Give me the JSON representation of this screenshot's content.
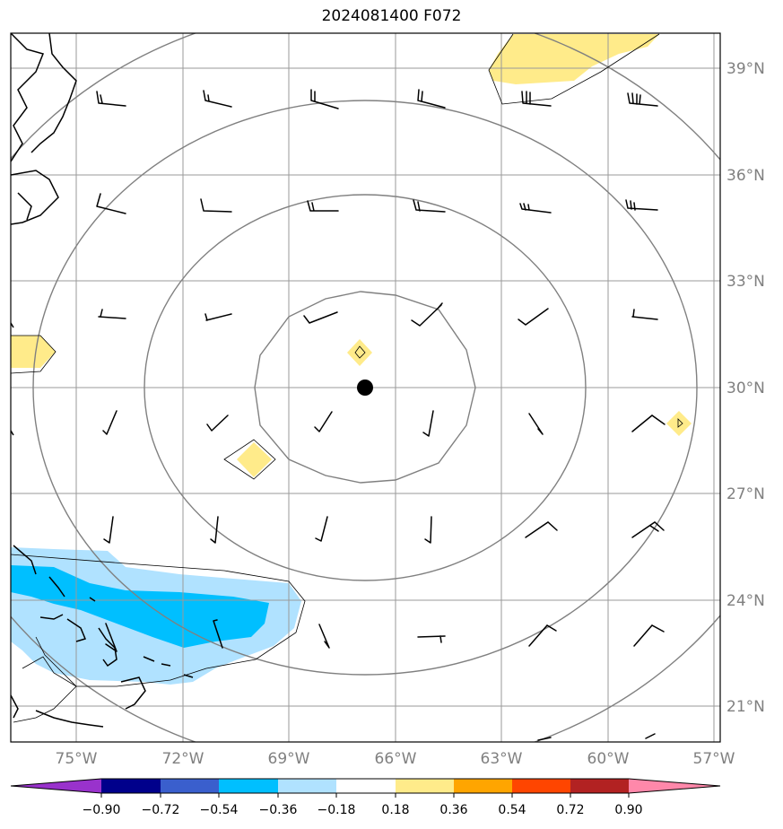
{
  "title": "2024081400 F072",
  "map": {
    "lon_range": [
      -76.875,
      -56.875
    ],
    "lat_range": [
      20.0,
      40.0
    ],
    "lon_ticks": [
      -75,
      -72,
      -69,
      -66,
      -63,
      -60,
      -57
    ],
    "lon_tick_labels": [
      "75°W",
      "72°W",
      "69°W",
      "66°W",
      "63°W",
      "60°W",
      "57°W"
    ],
    "lat_ticks": [
      21,
      24,
      27,
      30,
      33,
      36,
      39
    ],
    "lat_tick_labels": [
      "21°N",
      "24°N",
      "27°N",
      "30°N",
      "33°N",
      "36°N",
      "39°N"
    ],
    "grid": true,
    "center": {
      "lon": -66.875,
      "lat": 30.0
    },
    "range_ring_radii_deg": [
      3,
      6,
      9,
      12
    ]
  },
  "colorbar": {
    "tick_labels": [
      "−0.90",
      "−0.72",
      "−0.54",
      "−0.36",
      "−0.18",
      "0.18",
      "0.36",
      "0.54",
      "0.72",
      "0.90"
    ],
    "colors": [
      "#9932cc",
      "#00008b",
      "#3a5fcd",
      "#00bfff",
      "#b0e2ff",
      "#ffffff",
      "#ffeb8a",
      "#ffa500",
      "#ff4500",
      "#b22222",
      "#ff88aa"
    ]
  },
  "colors": {
    "positive_shading": "#ffeb8a",
    "negative_light": "#b0e2ff",
    "negative_strong": "#00bfff",
    "grid": "#9a9a9a",
    "rings": "#808080"
  },
  "chart_data": {
    "type": "heatmap",
    "description_fields": [
      "wind barbs",
      "anomaly shading"
    ],
    "barb_grid_lon": [
      -74,
      -71,
      -68,
      -65,
      -62,
      -59
    ],
    "barb_grid_lat": [
      38.5,
      35.5,
      32.5,
      29.5,
      26.5,
      23.5
    ],
    "shaded_regions": [
      {
        "level": "0.18-0.36",
        "near_lon": -63,
        "near_lat": 39.5
      },
      {
        "level": "0.18-0.36",
        "near_lon": -76.5,
        "near_lat": 31
      },
      {
        "level": "0.18-0.36",
        "near_lon": -67,
        "near_lat": 31
      },
      {
        "level": "0.18-0.36",
        "near_lon": -70,
        "near_lat": 28
      },
      {
        "level": "0.18-0.36",
        "near_lon": -58,
        "near_lat": 29
      },
      {
        "level": "-0.36--0.18",
        "near_lon": -74,
        "near_lat": 24
      },
      {
        "level": "-0.54--0.36",
        "near_lon": -73,
        "near_lat": 24
      }
    ]
  }
}
